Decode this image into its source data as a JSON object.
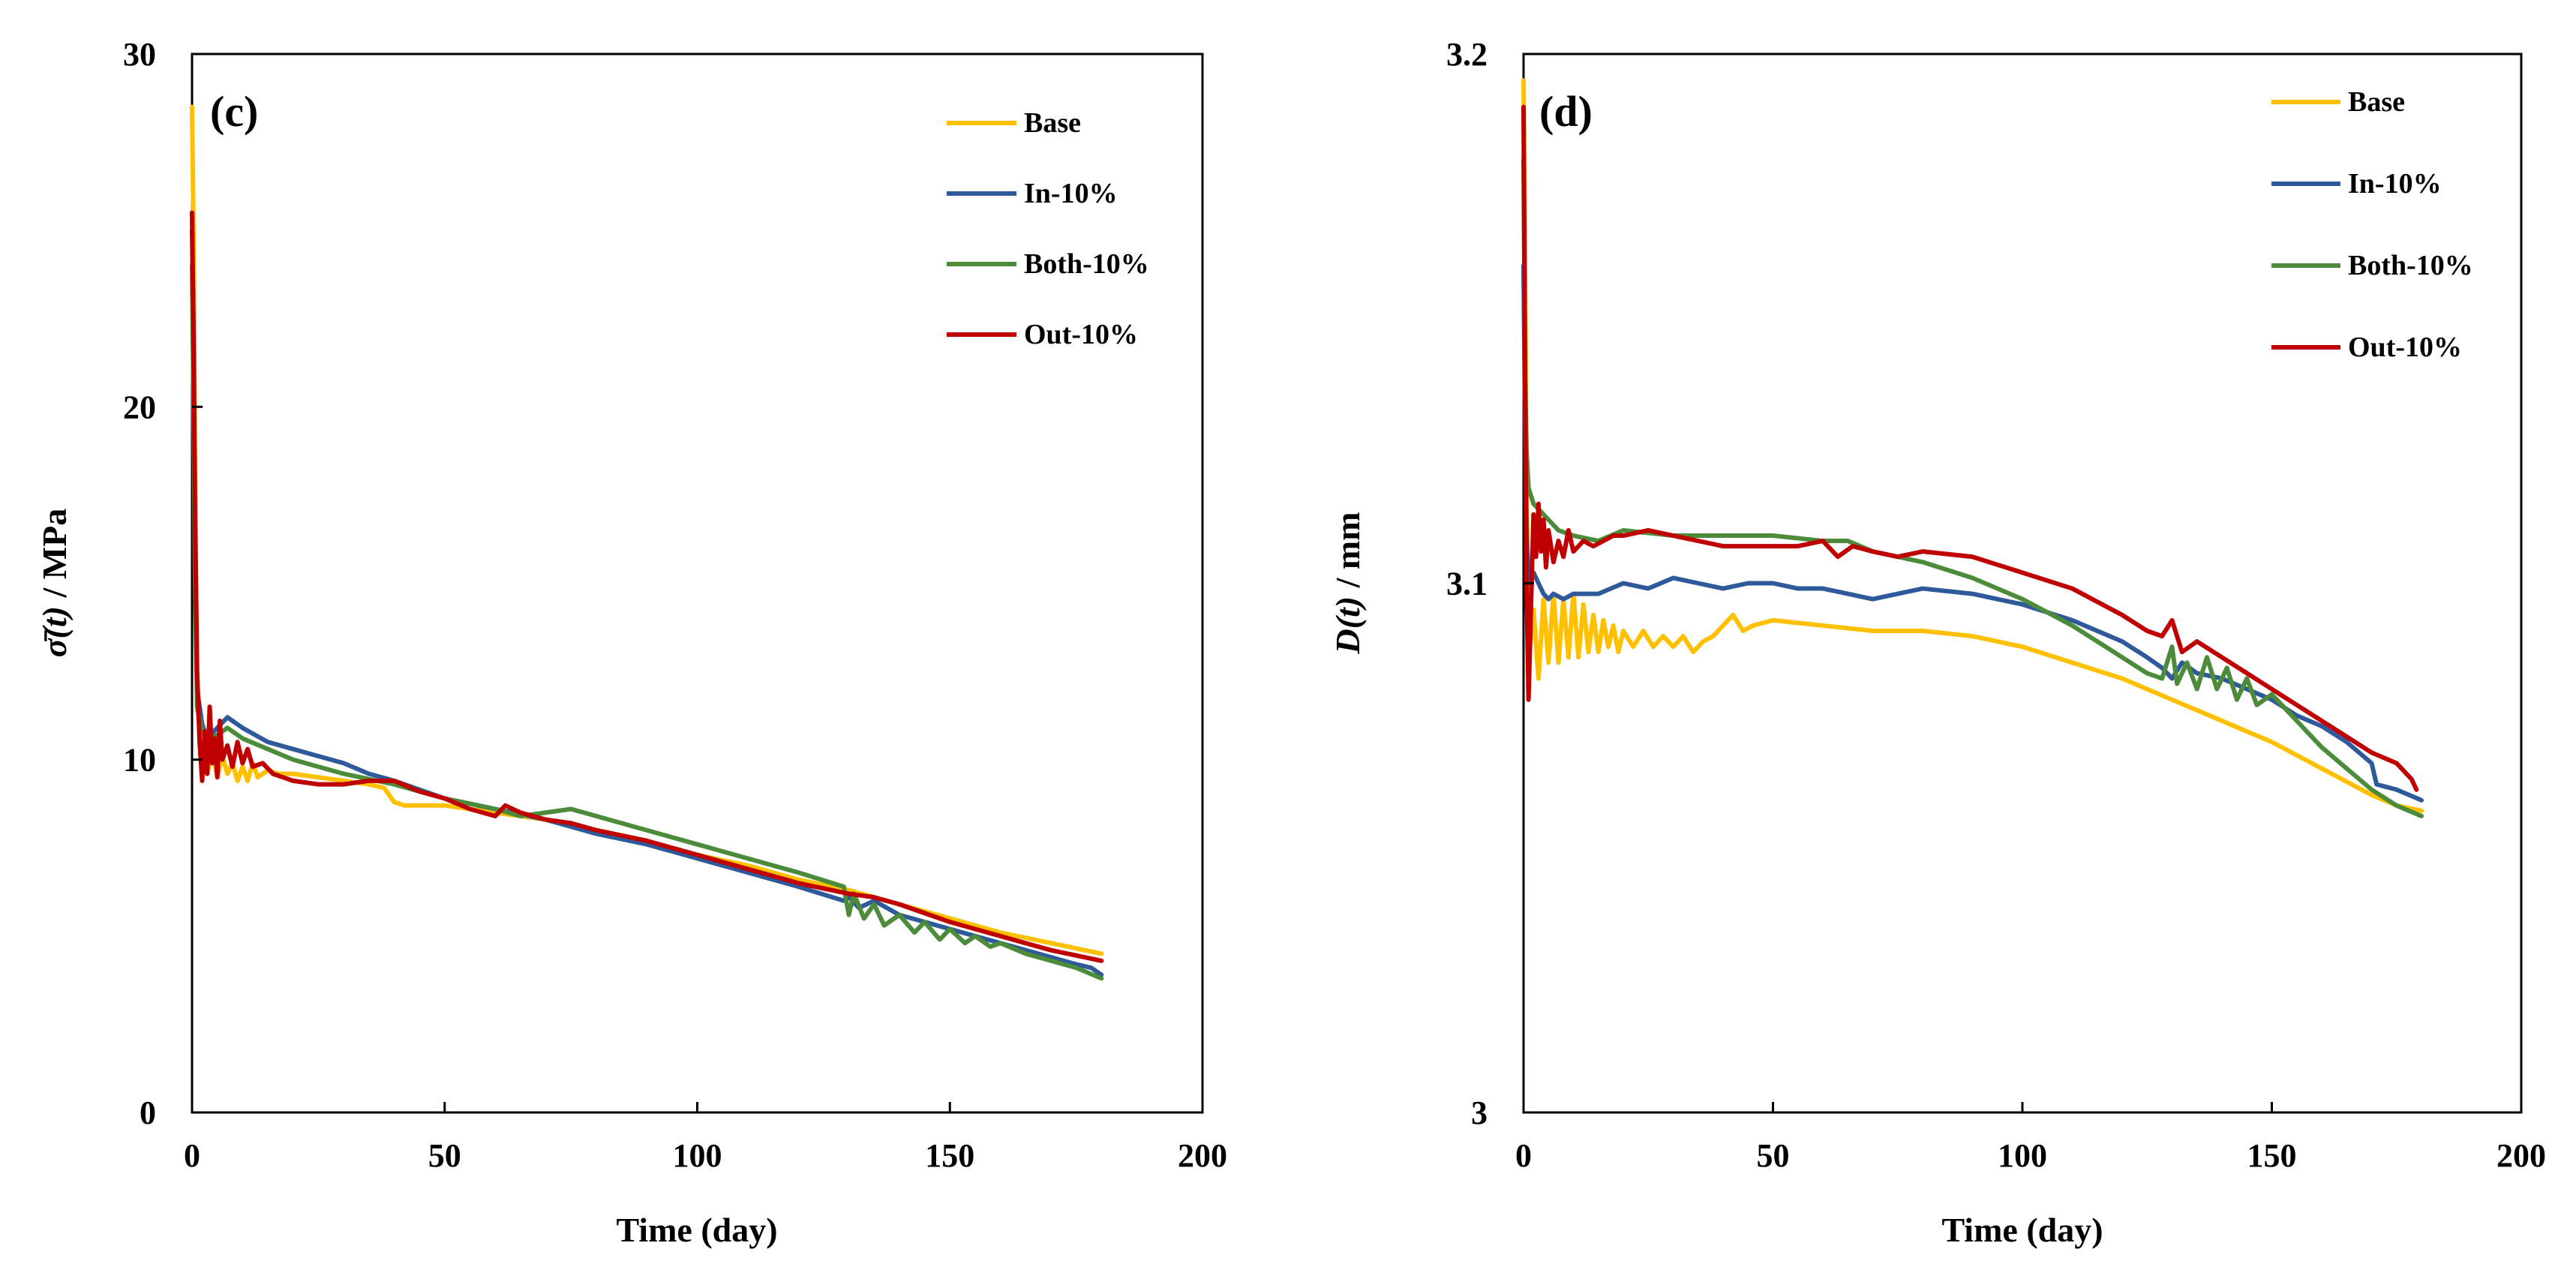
{
  "chart_data": [
    {
      "type": "line",
      "panel_label": "(c)",
      "title": "",
      "xlabel": "Time (day)",
      "ylabel_main": "σ̄(t)",
      "ylabel_unit": " / MPa",
      "xlim": [
        0,
        200
      ],
      "ylim": [
        0,
        30
      ],
      "xticks": [
        "0",
        "50",
        "100",
        "150",
        "200"
      ],
      "yticks": [
        "0",
        "10",
        "20",
        "30"
      ],
      "grid": false,
      "legend_position": "top-right",
      "series": [
        {
          "name": "Base",
          "color": "#FFC000",
          "x": [
            0,
            0.3,
            0.6,
            1,
            2,
            3,
            4,
            5,
            6,
            7,
            8,
            9,
            10,
            11,
            12,
            13,
            14,
            15,
            17,
            20,
            25,
            30,
            35,
            38,
            40,
            42,
            45,
            50,
            55,
            60,
            65,
            70,
            75,
            80,
            90,
            100,
            110,
            120,
            130,
            140,
            150,
            160,
            170,
            180
          ],
          "y": [
            28.5,
            25,
            18,
            11.5,
            10.5,
            9.6,
            10.2,
            9.5,
            10.1,
            9.6,
            9.9,
            9.4,
            9.8,
            9.4,
            9.9,
            9.5,
            9.6,
            9.7,
            9.6,
            9.6,
            9.5,
            9.4,
            9.3,
            9.2,
            8.8,
            8.7,
            8.7,
            8.7,
            8.6,
            8.5,
            8.4,
            8.3,
            8.2,
            8.0,
            7.7,
            7.3,
            7.0,
            6.6,
            6.3,
            5.9,
            5.5,
            5.1,
            4.8,
            4.5
          ]
        },
        {
          "name": "In-10%",
          "color": "#2E5A9C",
          "x": [
            0,
            0.3,
            0.6,
            1,
            2,
            3,
            5,
            7,
            10,
            15,
            20,
            25,
            30,
            35,
            40,
            50,
            60,
            70,
            80,
            90,
            100,
            110,
            120,
            129,
            130,
            132,
            135,
            140,
            145,
            150,
            155,
            160,
            165,
            170,
            175,
            178,
            180
          ],
          "y": [
            25,
            22,
            16,
            12,
            11,
            10.6,
            10.9,
            11.2,
            10.9,
            10.5,
            10.3,
            10.1,
            9.9,
            9.6,
            9.4,
            8.9,
            8.6,
            8.3,
            7.9,
            7.6,
            7.2,
            6.8,
            6.4,
            6.0,
            6.1,
            5.8,
            6.0,
            5.6,
            5.4,
            5.2,
            5.0,
            4.8,
            4.6,
            4.4,
            4.2,
            4.1,
            3.9
          ]
        },
        {
          "name": "Both-10%",
          "color": "#4C8B3A",
          "x": [
            0,
            0.3,
            0.6,
            1,
            2,
            3,
            5,
            7,
            10,
            15,
            20,
            30,
            40,
            50,
            60,
            65,
            70,
            75,
            80,
            90,
            100,
            110,
            120,
            129,
            130,
            131,
            133,
            135,
            137,
            140,
            143,
            145,
            148,
            150,
            153,
            155,
            158,
            160,
            165,
            170,
            175,
            180
          ],
          "y": [
            24,
            20,
            15,
            11.5,
            10.8,
            10.6,
            10.7,
            10.9,
            10.6,
            10.3,
            10.0,
            9.6,
            9.3,
            8.9,
            8.6,
            8.4,
            8.5,
            8.6,
            8.4,
            8.0,
            7.6,
            7.2,
            6.8,
            6.4,
            5.6,
            6.2,
            5.5,
            5.9,
            5.3,
            5.6,
            5.1,
            5.4,
            4.9,
            5.2,
            4.8,
            5.0,
            4.7,
            4.8,
            4.5,
            4.3,
            4.1,
            3.8
          ]
        },
        {
          "name": "Out-10%",
          "color": "#C00000",
          "x": [
            0,
            0.3,
            0.6,
            1,
            1.5,
            2,
            2.5,
            3,
            3.5,
            4,
            4.5,
            5,
            5.5,
            6,
            7,
            8,
            9,
            10,
            11,
            12,
            14,
            16,
            18,
            20,
            25,
            30,
            35,
            40,
            45,
            50,
            55,
            60,
            62,
            65,
            70,
            75,
            80,
            90,
            100,
            110,
            120,
            130,
            135,
            140,
            150,
            160,
            170,
            180
          ],
          "y": [
            25.5,
            22,
            17,
            12.5,
            10.5,
            9.4,
            10.8,
            9.6,
            11.5,
            9.9,
            10.6,
            9.5,
            11.1,
            10.0,
            10.4,
            9.8,
            10.5,
            9.9,
            10.3,
            9.8,
            9.9,
            9.6,
            9.5,
            9.4,
            9.3,
            9.3,
            9.4,
            9.4,
            9.1,
            8.9,
            8.6,
            8.4,
            8.7,
            8.5,
            8.3,
            8.2,
            8.0,
            7.7,
            7.3,
            6.9,
            6.5,
            6.2,
            6.1,
            5.9,
            5.4,
            5.0,
            4.6,
            4.3
          ]
        }
      ]
    },
    {
      "type": "line",
      "panel_label": "(d)",
      "title": "",
      "xlabel": "Time (day)",
      "ylabel_main": "D(t)",
      "ylabel_unit": " / mm",
      "xlim": [
        0,
        200
      ],
      "ylim": [
        3.0,
        3.2
      ],
      "xticks": [
        "0",
        "50",
        "100",
        "150",
        "200"
      ],
      "yticks": [
        "3",
        "3.1",
        "3.2"
      ],
      "grid": false,
      "legend_position": "top-right",
      "series": [
        {
          "name": "Base",
          "color": "#FFC000",
          "x": [
            0,
            0.3,
            0.6,
            1,
            2,
            3,
            4,
            5,
            6,
            7,
            8,
            9,
            10,
            11,
            12,
            13,
            14,
            15,
            16,
            17,
            18,
            19,
            20,
            22,
            24,
            26,
            28,
            30,
            32,
            34,
            36,
            38,
            40,
            42,
            44,
            46,
            50,
            60,
            70,
            80,
            90,
            100,
            110,
            120,
            130,
            140,
            150,
            160,
            170,
            175,
            180
          ],
          "y": [
            3.195,
            3.16,
            3.12,
            3.085,
            3.095,
            3.082,
            3.097,
            3.085,
            3.098,
            3.085,
            3.097,
            3.086,
            3.098,
            3.086,
            3.096,
            3.087,
            3.094,
            3.087,
            3.093,
            3.088,
            3.092,
            3.087,
            3.091,
            3.088,
            3.091,
            3.088,
            3.09,
            3.088,
            3.09,
            3.087,
            3.089,
            3.09,
            3.092,
            3.094,
            3.091,
            3.092,
            3.093,
            3.092,
            3.091,
            3.091,
            3.09,
            3.088,
            3.085,
            3.082,
            3.078,
            3.074,
            3.07,
            3.065,
            3.06,
            3.058,
            3.057
          ]
        },
        {
          "name": "In-10%",
          "color": "#2E5A9C",
          "x": [
            0,
            0.3,
            0.6,
            1,
            2,
            3,
            4,
            5,
            6,
            8,
            10,
            15,
            20,
            25,
            30,
            35,
            40,
            45,
            50,
            55,
            60,
            65,
            70,
            80,
            90,
            100,
            110,
            120,
            125,
            128,
            130,
            132,
            135,
            140,
            145,
            150,
            155,
            160,
            165,
            170,
            171,
            175,
            180
          ],
          "y": [
            3.16,
            3.13,
            3.11,
            3.1,
            3.102,
            3.1,
            3.098,
            3.097,
            3.098,
            3.097,
            3.098,
            3.098,
            3.1,
            3.099,
            3.101,
            3.1,
            3.099,
            3.1,
            3.1,
            3.099,
            3.099,
            3.098,
            3.097,
            3.099,
            3.098,
            3.096,
            3.093,
            3.089,
            3.086,
            3.084,
            3.082,
            3.085,
            3.083,
            3.082,
            3.08,
            3.078,
            3.075,
            3.073,
            3.07,
            3.066,
            3.062,
            3.061,
            3.059
          ]
        },
        {
          "name": "Both-10%",
          "color": "#4C8B3A",
          "x": [
            0,
            0.3,
            0.6,
            1,
            2,
            3,
            4,
            5,
            7,
            10,
            15,
            20,
            30,
            40,
            50,
            60,
            65,
            70,
            80,
            90,
            100,
            110,
            120,
            125,
            128,
            130,
            131,
            133,
            135,
            137,
            139,
            141,
            143,
            145,
            147,
            150,
            155,
            160,
            165,
            170,
            175,
            180
          ],
          "y": [
            3.18,
            3.14,
            3.125,
            3.118,
            3.115,
            3.114,
            3.113,
            3.112,
            3.11,
            3.109,
            3.108,
            3.11,
            3.109,
            3.109,
            3.109,
            3.108,
            3.108,
            3.106,
            3.104,
            3.101,
            3.097,
            3.092,
            3.086,
            3.083,
            3.082,
            3.088,
            3.081,
            3.085,
            3.08,
            3.086,
            3.08,
            3.084,
            3.078,
            3.082,
            3.077,
            3.079,
            3.074,
            3.069,
            3.065,
            3.061,
            3.058,
            3.056
          ]
        },
        {
          "name": "Out-10%",
          "color": "#C00000",
          "x": [
            0,
            0.3,
            0.6,
            1,
            1.5,
            2,
            2.5,
            3,
            3.5,
            4,
            4.5,
            5,
            6,
            7,
            8,
            9,
            10,
            12,
            14,
            16,
            18,
            20,
            25,
            30,
            35,
            40,
            45,
            50,
            55,
            60,
            63,
            66,
            70,
            75,
            80,
            90,
            100,
            110,
            120,
            125,
            128,
            130,
            132,
            135,
            140,
            145,
            150,
            155,
            160,
            165,
            170,
            175,
            178,
            179
          ],
          "y": [
            3.19,
            3.14,
            3.1,
            3.078,
            3.096,
            3.113,
            3.105,
            3.115,
            3.106,
            3.112,
            3.103,
            3.11,
            3.104,
            3.108,
            3.105,
            3.11,
            3.106,
            3.108,
            3.107,
            3.108,
            3.109,
            3.109,
            3.11,
            3.109,
            3.108,
            3.107,
            3.107,
            3.107,
            3.107,
            3.108,
            3.105,
            3.107,
            3.106,
            3.105,
            3.106,
            3.105,
            3.102,
            3.099,
            3.094,
            3.091,
            3.09,
            3.093,
            3.087,
            3.089,
            3.086,
            3.083,
            3.08,
            3.077,
            3.074,
            3.071,
            3.068,
            3.066,
            3.063,
            3.061
          ]
        }
      ]
    }
  ]
}
